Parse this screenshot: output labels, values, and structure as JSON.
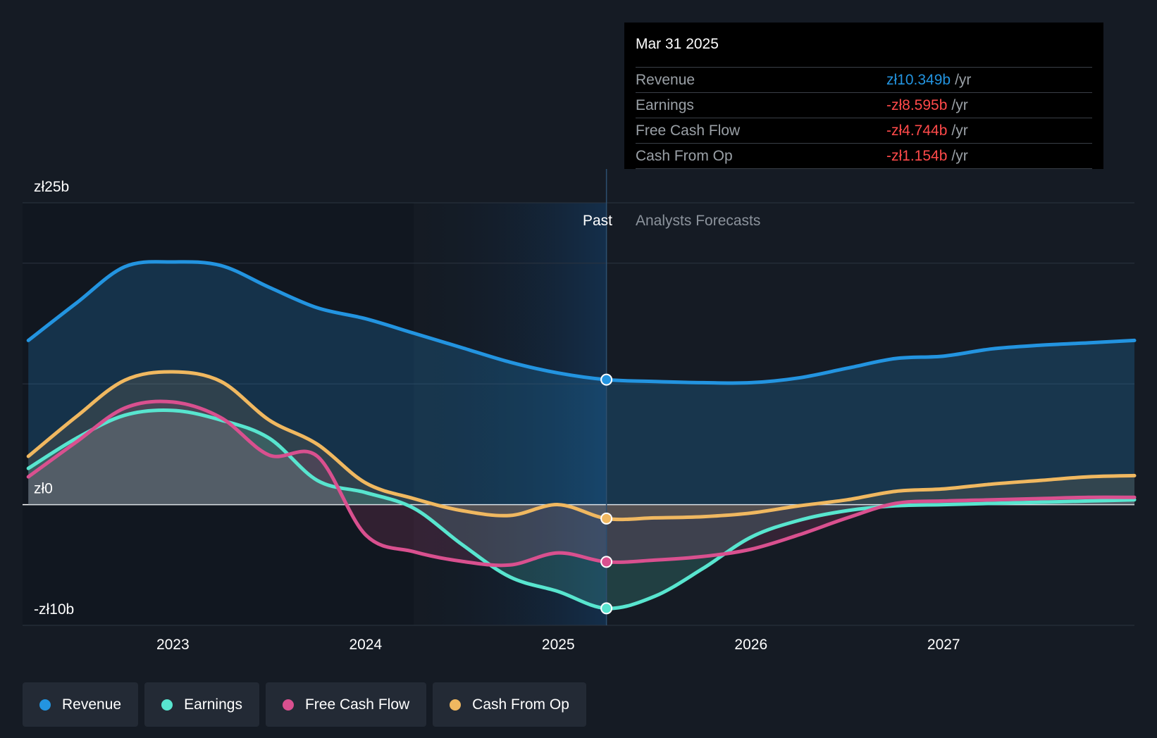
{
  "chart_data": {
    "type": "line",
    "currency_prefix": "zł",
    "y_axis": {
      "labels": [
        "zł25b",
        "zł0",
        "-zł10b"
      ],
      "ylim": [
        -10,
        25
      ],
      "unit": "billion PLN"
    },
    "x_axis": {
      "tick_labels": [
        "2023",
        "2024",
        "2025",
        "2026",
        "2027"
      ],
      "xlim": [
        2022.22,
        2027.99
      ]
    },
    "regions": {
      "past_label": "Past",
      "forecast_label": "Analysts Forecasts",
      "divider_x": 2025.25,
      "highlight_start_x": 2024.25
    },
    "series": [
      {
        "name": "Revenue",
        "color": "#2394e0",
        "x": [
          2022.25,
          2022.5,
          2022.75,
          2023.0,
          2023.25,
          2023.5,
          2023.75,
          2024.0,
          2024.25,
          2024.5,
          2024.75,
          2025.0,
          2025.25,
          2025.5,
          2025.75,
          2026.0,
          2026.25,
          2026.5,
          2026.75,
          2027.0,
          2027.25,
          2027.5,
          2027.75,
          2027.99
        ],
        "values": [
          13.6,
          16.7,
          19.7,
          20.1,
          19.8,
          18.0,
          16.3,
          15.4,
          14.2,
          13.0,
          11.8,
          10.9,
          10.349,
          10.2,
          10.1,
          10.1,
          10.5,
          11.3,
          12.1,
          12.3,
          12.9,
          13.2,
          13.4,
          13.6
        ]
      },
      {
        "name": "Earnings",
        "color": "#58e5cf",
        "x": [
          2022.25,
          2022.5,
          2022.75,
          2023.0,
          2023.25,
          2023.5,
          2023.75,
          2024.0,
          2024.25,
          2024.5,
          2024.75,
          2025.0,
          2025.25,
          2025.5,
          2025.75,
          2026.0,
          2026.25,
          2026.5,
          2026.75,
          2027.0,
          2027.25,
          2027.5,
          2027.75,
          2027.99
        ],
        "values": [
          3.0,
          5.5,
          7.4,
          7.8,
          7.0,
          5.5,
          2.0,
          1.0,
          -0.3,
          -3.3,
          -6.0,
          -7.2,
          -8.595,
          -7.6,
          -5.3,
          -2.7,
          -1.3,
          -0.5,
          -0.1,
          0.0,
          0.1,
          0.2,
          0.3,
          0.4
        ]
      },
      {
        "name": "Free Cash Flow",
        "color": "#d9508f",
        "x": [
          2022.25,
          2022.5,
          2022.75,
          2023.0,
          2023.25,
          2023.5,
          2023.75,
          2024.0,
          2024.25,
          2024.5,
          2024.75,
          2025.0,
          2025.25,
          2025.5,
          2025.75,
          2026.0,
          2026.25,
          2026.5,
          2026.75,
          2027.0,
          2027.25,
          2027.5,
          2027.75,
          2027.99
        ],
        "values": [
          2.3,
          5.2,
          8.0,
          8.5,
          7.2,
          4.1,
          4.0,
          -2.5,
          -3.9,
          -4.7,
          -5.0,
          -4.0,
          -4.744,
          -4.6,
          -4.3,
          -3.7,
          -2.5,
          -1.1,
          0.1,
          0.3,
          0.4,
          0.5,
          0.6,
          0.6
        ]
      },
      {
        "name": "Cash From Op",
        "color": "#f0b860",
        "x": [
          2022.25,
          2022.5,
          2022.75,
          2023.0,
          2023.25,
          2023.5,
          2023.75,
          2024.0,
          2024.25,
          2024.5,
          2024.75,
          2025.0,
          2025.25,
          2025.5,
          2025.75,
          2026.0,
          2026.25,
          2026.5,
          2026.75,
          2027.0,
          2027.25,
          2027.5,
          2027.75,
          2027.99
        ],
        "values": [
          4.0,
          7.3,
          10.3,
          11.0,
          10.2,
          7.0,
          5.0,
          1.8,
          0.5,
          -0.5,
          -0.9,
          0.0,
          -1.154,
          -1.1,
          -1.0,
          -0.7,
          -0.1,
          0.4,
          1.1,
          1.3,
          1.7,
          2.0,
          2.3,
          2.4
        ]
      }
    ]
  },
  "tooltip": {
    "date": "Mar 31 2025",
    "unit": "/yr",
    "rows": [
      {
        "label": "Revenue",
        "value": "zł10.349b",
        "color": "#2394e0"
      },
      {
        "label": "Earnings",
        "value": "-zł8.595b",
        "color": "#ff4a4a"
      },
      {
        "label": "Free Cash Flow",
        "value": "-zł4.744b",
        "color": "#ff4a4a"
      },
      {
        "label": "Cash From Op",
        "value": "-zł1.154b",
        "color": "#ff4a4a"
      }
    ]
  },
  "legend": {
    "items": [
      {
        "label": "Revenue",
        "color": "#2394e0"
      },
      {
        "label": "Earnings",
        "color": "#58e5cf"
      },
      {
        "label": "Free Cash Flow",
        "color": "#d9508f"
      },
      {
        "label": "Cash From Op",
        "color": "#f0b860"
      }
    ]
  }
}
